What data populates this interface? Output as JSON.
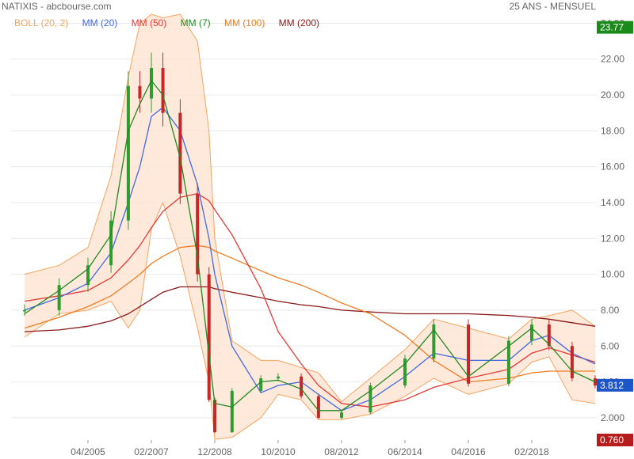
{
  "header": {
    "title": "NATIXIS - abcbourse.com",
    "period": "25 ANS - MENSUEL"
  },
  "legend": [
    {
      "label": "BOLL (20, 2)",
      "color": "#f4a460"
    },
    {
      "label": "MM (20)",
      "color": "#4169e1"
    },
    {
      "label": "MM (50)",
      "color": "#e53935"
    },
    {
      "label": "MM (7)",
      "color": "#1f8a1f"
    },
    {
      "label": "MM (100)",
      "color": "#f07d22"
    },
    {
      "label": "MM (200)",
      "color": "#8b1a1a"
    }
  ],
  "chart_data": {
    "type": "line",
    "x_ticks": [
      "04/2005",
      "02/2007",
      "12/2008",
      "10/2010",
      "08/2012",
      "06/2014",
      "04/2016",
      "02/2018"
    ],
    "y_ticks": [
      "2.000",
      "4.00",
      "6.00",
      "8.00",
      "10.00",
      "12.00",
      "14.00",
      "16.00",
      "18.00",
      "20.00",
      "22.00",
      "24.00"
    ],
    "ylim": [
      0.76,
      24.5
    ],
    "price_labels": [
      {
        "value": "23.77",
        "color": "#1a8a1a"
      },
      {
        "value": "3.812",
        "color": "#1e56c8"
      },
      {
        "value": "0.760",
        "color": "#b71c1c"
      }
    ],
    "approx_series": {
      "close": [
        {
          "date": "2003-06",
          "value": 8.0
        },
        {
          "date": "2004-06",
          "value": 9.4
        },
        {
          "date": "2005-04",
          "value": 10.5
        },
        {
          "date": "2005-12",
          "value": 13.0
        },
        {
          "date": "2006-06",
          "value": 20.5
        },
        {
          "date": "2006-10",
          "value": 19.8
        },
        {
          "date": "2007-02",
          "value": 21.5
        },
        {
          "date": "2007-06",
          "value": 19.0
        },
        {
          "date": "2007-12",
          "value": 14.5
        },
        {
          "date": "2008-06",
          "value": 10.0
        },
        {
          "date": "2008-10",
          "value": 3.0
        },
        {
          "date": "2008-12",
          "value": 1.2
        },
        {
          "date": "2009-06",
          "value": 3.5
        },
        {
          "date": "2010-04",
          "value": 4.2
        },
        {
          "date": "2010-10",
          "value": 4.3
        },
        {
          "date": "2011-06",
          "value": 3.2
        },
        {
          "date": "2011-12",
          "value": 2.0
        },
        {
          "date": "2012-08",
          "value": 2.3
        },
        {
          "date": "2013-06",
          "value": 3.8
        },
        {
          "date": "2014-06",
          "value": 5.3
        },
        {
          "date": "2015-04",
          "value": 7.2
        },
        {
          "date": "2016-04",
          "value": 3.9
        },
        {
          "date": "2017-06",
          "value": 6.3
        },
        {
          "date": "2018-02",
          "value": 7.2
        },
        {
          "date": "2018-08",
          "value": 6.0
        },
        {
          "date": "2019-04",
          "value": 4.2
        },
        {
          "date": "2019-12",
          "value": 3.8
        }
      ],
      "ma7": [
        {
          "date": "2003-06",
          "value": 7.8
        },
        {
          "date": "2004-06",
          "value": 9.1
        },
        {
          "date": "2005-04",
          "value": 10.3
        },
        {
          "date": "2005-12",
          "value": 12.2
        },
        {
          "date": "2006-06",
          "value": 18.0
        },
        {
          "date": "2006-10",
          "value": 19.5
        },
        {
          "date": "2007-02",
          "value": 20.8
        },
        {
          "date": "2007-06",
          "value": 20.0
        },
        {
          "date": "2007-12",
          "value": 16.5
        },
        {
          "date": "2008-06",
          "value": 11.0
        },
        {
          "date": "2008-10",
          "value": 5.5
        },
        {
          "date": "2008-12",
          "value": 2.8
        },
        {
          "date": "2009-06",
          "value": 2.6
        },
        {
          "date": "2010-04",
          "value": 4.0
        },
        {
          "date": "2010-10",
          "value": 4.1
        },
        {
          "date": "2011-06",
          "value": 3.6
        },
        {
          "date": "2011-12",
          "value": 2.4
        },
        {
          "date": "2012-08",
          "value": 2.4
        },
        {
          "date": "2013-06",
          "value": 3.5
        },
        {
          "date": "2014-06",
          "value": 5.0
        },
        {
          "date": "2015-04",
          "value": 6.9
        },
        {
          "date": "2016-04",
          "value": 4.3
        },
        {
          "date": "2017-06",
          "value": 6.0
        },
        {
          "date": "2018-02",
          "value": 7.0
        },
        {
          "date": "2018-08",
          "value": 6.1
        },
        {
          "date": "2019-04",
          "value": 4.6
        },
        {
          "date": "2019-12",
          "value": 4.0
        }
      ],
      "ma20": [
        {
          "date": "2003-06",
          "value": 8.0
        },
        {
          "date": "2004-06",
          "value": 8.7
        },
        {
          "date": "2005-04",
          "value": 9.5
        },
        {
          "date": "2005-12",
          "value": 11.2
        },
        {
          "date": "2006-06",
          "value": 14.0
        },
        {
          "date": "2006-10",
          "value": 16.0
        },
        {
          "date": "2007-02",
          "value": 18.8
        },
        {
          "date": "2007-06",
          "value": 19.3
        },
        {
          "date": "2007-12",
          "value": 18.0
        },
        {
          "date": "2008-06",
          "value": 15.0
        },
        {
          "date": "2008-10",
          "value": 12.0
        },
        {
          "date": "2008-12",
          "value": 10.0
        },
        {
          "date": "2009-06",
          "value": 6.0
        },
        {
          "date": "2010-04",
          "value": 3.4
        },
        {
          "date": "2010-10",
          "value": 3.8
        },
        {
          "date": "2011-06",
          "value": 4.0
        },
        {
          "date": "2011-12",
          "value": 3.3
        },
        {
          "date": "2012-08",
          "value": 2.4
        },
        {
          "date": "2013-06",
          "value": 3.0
        },
        {
          "date": "2014-06",
          "value": 4.3
        },
        {
          "date": "2015-04",
          "value": 5.6
        },
        {
          "date": "2016-04",
          "value": 5.2
        },
        {
          "date": "2017-06",
          "value": 5.2
        },
        {
          "date": "2018-02",
          "value": 6.3
        },
        {
          "date": "2018-08",
          "value": 6.6
        },
        {
          "date": "2019-04",
          "value": 5.6
        },
        {
          "date": "2019-12",
          "value": 5.0
        }
      ],
      "ma50": [
        {
          "date": "2003-06",
          "value": 8.5
        },
        {
          "date": "2004-06",
          "value": 8.8
        },
        {
          "date": "2005-04",
          "value": 9.1
        },
        {
          "date": "2005-12",
          "value": 9.8
        },
        {
          "date": "2006-06",
          "value": 10.8
        },
        {
          "date": "2006-10",
          "value": 11.6
        },
        {
          "date": "2007-02",
          "value": 12.6
        },
        {
          "date": "2007-06",
          "value": 13.5
        },
        {
          "date": "2007-12",
          "value": 14.3
        },
        {
          "date": "2008-06",
          "value": 14.5
        },
        {
          "date": "2008-10",
          "value": 14.1
        },
        {
          "date": "2008-12",
          "value": 13.6
        },
        {
          "date": "2009-06",
          "value": 12.2
        },
        {
          "date": "2010-04",
          "value": 9.2
        },
        {
          "date": "2010-10",
          "value": 6.8
        },
        {
          "date": "2011-06",
          "value": 5.0
        },
        {
          "date": "2011-12",
          "value": 3.8
        },
        {
          "date": "2012-08",
          "value": 2.8
        },
        {
          "date": "2013-06",
          "value": 2.6
        },
        {
          "date": "2014-06",
          "value": 3.0
        },
        {
          "date": "2015-04",
          "value": 3.7
        },
        {
          "date": "2016-04",
          "value": 4.2
        },
        {
          "date": "2017-06",
          "value": 4.7
        },
        {
          "date": "2018-02",
          "value": 5.6
        },
        {
          "date": "2018-08",
          "value": 5.9
        },
        {
          "date": "2019-04",
          "value": 5.5
        },
        {
          "date": "2019-12",
          "value": 5.1
        }
      ],
      "ma100": [
        {
          "date": "2003-06",
          "value": 7.0
        },
        {
          "date": "2004-06",
          "value": 7.6
        },
        {
          "date": "2005-04",
          "value": 8.2
        },
        {
          "date": "2005-12",
          "value": 8.8
        },
        {
          "date": "2006-06",
          "value": 9.5
        },
        {
          "date": "2006-10",
          "value": 10.0
        },
        {
          "date": "2007-02",
          "value": 10.6
        },
        {
          "date": "2007-06",
          "value": 11.0
        },
        {
          "date": "2007-12",
          "value": 11.5
        },
        {
          "date": "2008-06",
          "value": 11.6
        },
        {
          "date": "2008-10",
          "value": 11.5
        },
        {
          "date": "2008-12",
          "value": 11.3
        },
        {
          "date": "2009-06",
          "value": 10.9
        },
        {
          "date": "2010-04",
          "value": 10.2
        },
        {
          "date": "2010-10",
          "value": 9.8
        },
        {
          "date": "2011-06",
          "value": 9.4
        },
        {
          "date": "2011-12",
          "value": 9.0
        },
        {
          "date": "2012-08",
          "value": 8.4
        },
        {
          "date": "2013-06",
          "value": 7.8
        },
        {
          "date": "2014-06",
          "value": 6.6
        },
        {
          "date": "2015-04",
          "value": 5.2
        },
        {
          "date": "2016-04",
          "value": 4.0
        },
        {
          "date": "2017-06",
          "value": 4.2
        },
        {
          "date": "2018-02",
          "value": 4.5
        },
        {
          "date": "2018-08",
          "value": 4.6
        },
        {
          "date": "2019-04",
          "value": 4.6
        },
        {
          "date": "2019-12",
          "value": 4.6
        }
      ],
      "ma200": [
        {
          "date": "2003-06",
          "value": 6.8
        },
        {
          "date": "2004-06",
          "value": 6.9
        },
        {
          "date": "2005-04",
          "value": 7.1
        },
        {
          "date": "2005-12",
          "value": 7.4
        },
        {
          "date": "2006-06",
          "value": 7.8
        },
        {
          "date": "2006-10",
          "value": 8.2
        },
        {
          "date": "2007-02",
          "value": 8.6
        },
        {
          "date": "2007-06",
          "value": 9.0
        },
        {
          "date": "2007-12",
          "value": 9.3
        },
        {
          "date": "2008-06",
          "value": 9.3
        },
        {
          "date": "2008-10",
          "value": 9.3
        },
        {
          "date": "2008-12",
          "value": 9.2
        },
        {
          "date": "2009-06",
          "value": 9.0
        },
        {
          "date": "2010-04",
          "value": 8.7
        },
        {
          "date": "2010-10",
          "value": 8.5
        },
        {
          "date": "2011-06",
          "value": 8.3
        },
        {
          "date": "2011-12",
          "value": 8.2
        },
        {
          "date": "2012-08",
          "value": 8.0
        },
        {
          "date": "2013-06",
          "value": 7.9
        },
        {
          "date": "2014-06",
          "value": 7.8
        },
        {
          "date": "2015-04",
          "value": 7.8
        },
        {
          "date": "2016-04",
          "value": 7.8
        },
        {
          "date": "2017-06",
          "value": 7.7
        },
        {
          "date": "2018-02",
          "value": 7.6
        },
        {
          "date": "2018-08",
          "value": 7.5
        },
        {
          "date": "2019-04",
          "value": 7.3
        },
        {
          "date": "2019-12",
          "value": 7.1
        }
      ],
      "boll_upper": [
        {
          "date": "2003-06",
          "value": 10.0
        },
        {
          "date": "2004-06",
          "value": 10.5
        },
        {
          "date": "2005-04",
          "value": 11.5
        },
        {
          "date": "2005-12",
          "value": 15.5
        },
        {
          "date": "2006-06",
          "value": 21.0
        },
        {
          "date": "2006-10",
          "value": 24.0
        },
        {
          "date": "2007-02",
          "value": 24.5
        },
        {
          "date": "2007-06",
          "value": 24.3
        },
        {
          "date": "2007-12",
          "value": 24.5
        },
        {
          "date": "2008-06",
          "value": 23.0
        },
        {
          "date": "2008-10",
          "value": 18.0
        },
        {
          "date": "2008-12",
          "value": 12.0
        },
        {
          "date": "2009-06",
          "value": 6.3
        },
        {
          "date": "2010-04",
          "value": 5.2
        },
        {
          "date": "2010-10",
          "value": 5.2
        },
        {
          "date": "2011-06",
          "value": 4.8
        },
        {
          "date": "2011-12",
          "value": 4.5
        },
        {
          "date": "2012-08",
          "value": 2.9
        },
        {
          "date": "2013-06",
          "value": 4.2
        },
        {
          "date": "2014-06",
          "value": 5.8
        },
        {
          "date": "2015-04",
          "value": 7.5
        },
        {
          "date": "2016-04",
          "value": 7.0
        },
        {
          "date": "2017-06",
          "value": 6.4
        },
        {
          "date": "2018-02",
          "value": 7.5
        },
        {
          "date": "2018-08",
          "value": 7.7
        },
        {
          "date": "2019-04",
          "value": 8.0
        },
        {
          "date": "2019-12",
          "value": 7.1
        }
      ],
      "boll_lower": [
        {
          "date": "2003-06",
          "value": 6.5
        },
        {
          "date": "2004-06",
          "value": 7.8
        },
        {
          "date": "2005-04",
          "value": 8.0
        },
        {
          "date": "2005-12",
          "value": 8.5
        },
        {
          "date": "2006-06",
          "value": 7.0
        },
        {
          "date": "2006-10",
          "value": 8.0
        },
        {
          "date": "2007-02",
          "value": 12.5
        },
        {
          "date": "2007-06",
          "value": 14.0
        },
        {
          "date": "2007-12",
          "value": 11.0
        },
        {
          "date": "2008-06",
          "value": 7.0
        },
        {
          "date": "2008-10",
          "value": 4.0
        },
        {
          "date": "2008-12",
          "value": 0.8
        },
        {
          "date": "2009-06",
          "value": 0.9
        },
        {
          "date": "2010-04",
          "value": 2.0
        },
        {
          "date": "2010-10",
          "value": 3.3
        },
        {
          "date": "2011-06",
          "value": 3.0
        },
        {
          "date": "2011-12",
          "value": 1.9
        },
        {
          "date": "2012-08",
          "value": 1.9
        },
        {
          "date": "2013-06",
          "value": 2.2
        },
        {
          "date": "2014-06",
          "value": 3.2
        },
        {
          "date": "2015-04",
          "value": 4.2
        },
        {
          "date": "2016-04",
          "value": 3.3
        },
        {
          "date": "2017-06",
          "value": 3.9
        },
        {
          "date": "2018-02",
          "value": 5.1
        },
        {
          "date": "2018-08",
          "value": 5.4
        },
        {
          "date": "2019-04",
          "value": 3.0
        },
        {
          "date": "2019-12",
          "value": 2.8
        }
      ]
    }
  }
}
